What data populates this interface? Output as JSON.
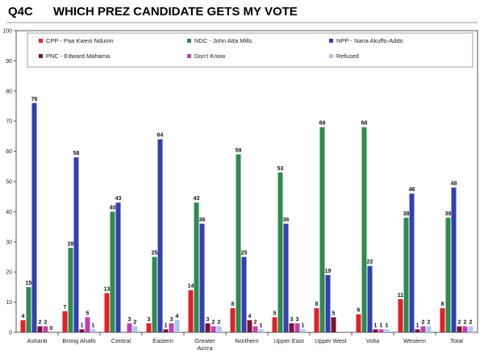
{
  "title_code": "Q4C",
  "title": "WHICH PREZ CANDIDATE GETS MY VOTE",
  "chart_data": {
    "type": "bar",
    "ylim": [
      0,
      100
    ],
    "yticks": [
      0,
      10,
      20,
      30,
      40,
      50,
      60,
      70,
      80,
      90,
      100
    ],
    "categories": [
      "Ashanti",
      "Brong Ahafo",
      "Central",
      "Eastern",
      "Greater Accra",
      "Northern",
      "Upper East",
      "Upper West",
      "Volta",
      "Western",
      "Total"
    ],
    "series": [
      {
        "name": "CPP - Paa Kwesi Nduom",
        "color": "#e0202a",
        "values": [
          4,
          7,
          13,
          3,
          14,
          8,
          5,
          8,
          6,
          11,
          8
        ]
      },
      {
        "name": "NDC - John Atta Mills",
        "color": "#2e8b4e",
        "values": [
          15,
          28,
          40,
          25,
          43,
          59,
          53,
          68,
          68,
          38,
          38
        ]
      },
      {
        "name": "NPP - Nana Akuffo-Addo",
        "color": "#3340b0",
        "values": [
          76,
          58,
          43,
          64,
          36,
          25,
          36,
          19,
          22,
          46,
          48
        ]
      },
      {
        "name": "PNC - Edward Mahama",
        "color": "#7a1530",
        "values": [
          2,
          1,
          0,
          1,
          3,
          4,
          3,
          5,
          1,
          1,
          2
        ]
      },
      {
        "name": "Don't Know",
        "color": "#c040b0",
        "values": [
          2,
          5,
          3,
          3,
          2,
          2,
          3,
          0,
          1,
          2,
          2
        ]
      },
      {
        "name": "Refused",
        "color": "#a8c8ec",
        "values": [
          0,
          1,
          2,
          4,
          2,
          1,
          1,
          0,
          1,
          2,
          2
        ]
      }
    ],
    "data_labels": [
      [
        "4",
        "7",
        "13",
        "3",
        "14",
        "8",
        "5",
        "8",
        "6",
        "11",
        "8"
      ],
      [
        "15",
        "28",
        "40",
        "25",
        "43",
        "59",
        "53",
        "68",
        "68",
        "38",
        "38"
      ],
      [
        "76",
        "58",
        "43",
        "64",
        "36",
        "25",
        "36",
        "19",
        "22",
        "46",
        "48"
      ],
      [
        "2",
        "1",
        "",
        "1",
        "3",
        "4",
        "3",
        "5",
        "1",
        "1",
        "2"
      ],
      [
        "2",
        "5",
        "3",
        "3",
        "2",
        "2",
        "3",
        "",
        "1",
        "2",
        "2"
      ],
      [
        "0",
        "1",
        "2",
        "4",
        "2",
        "1",
        "1",
        "",
        "1",
        "2",
        "2"
      ]
    ],
    "category_labels": [
      [
        "Ashanti"
      ],
      [
        "Brong Ahafo"
      ],
      [
        "Central"
      ],
      [
        "Eastern"
      ],
      [
        "Greater",
        "Accra"
      ],
      [
        "Northern"
      ],
      [
        "Upper East"
      ],
      [
        "Upper West"
      ],
      [
        "Volta"
      ],
      [
        "Western"
      ],
      [
        "Total"
      ]
    ],
    "legend_position": "top-inside",
    "grid": false
  }
}
